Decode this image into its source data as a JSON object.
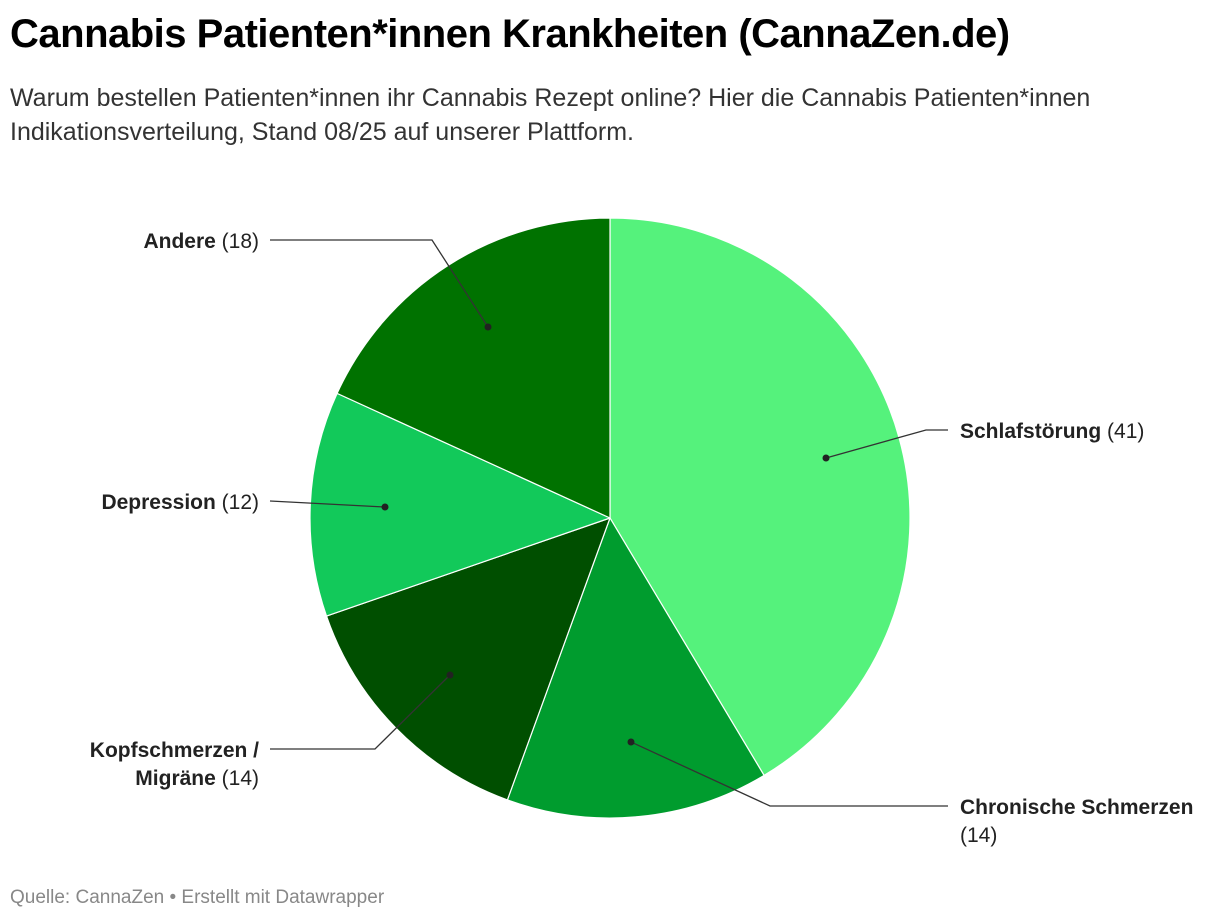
{
  "header": {
    "title": "Cannabis Patienten*innen Krankheiten (CannaZen.de)",
    "subtitle": "Warum bestellen Patienten*innen ihr Cannabis Rezept online? Hier die Cannabis Patienten*innen Indikationsverteilung, Stand 08/25 auf unserer Plattform."
  },
  "chart_data": {
    "type": "pie",
    "title": "Cannabis Patienten*innen Krankheiten (CannaZen.de)",
    "subtitle": "Warum bestellen Patienten*innen ihr Cannabis Rezept online? Hier die Cannabis Patienten*innen Indikationsverteilung, Stand 08/25 auf unserer Plattform.",
    "start": "12 o'clock, clockwise",
    "slices": [
      {
        "label": "Schlafstörung",
        "value": 41,
        "value_text": "(41)",
        "color": "#55f27c",
        "label_lines": [
          [
            "Schlafstörung",
            "(41)"
          ]
        ]
      },
      {
        "label": "Chronische Schmerzen",
        "value": 14,
        "value_text": "(14)",
        "color": "#009c2e",
        "label_lines": [
          [
            "Chronische Schmerzen",
            ""
          ],
          [
            "",
            "(14)"
          ]
        ]
      },
      {
        "label": "Kopfschmerzen / Migräne",
        "value": 14,
        "value_text": "(14)",
        "color": "#004f00",
        "label_lines": [
          [
            "Kopfschmerzen /",
            ""
          ],
          [
            "Migräne",
            "(14)"
          ]
        ]
      },
      {
        "label": "Depression",
        "value": 12,
        "value_text": "(12)",
        "color": "#12c95a",
        "label_lines": [
          [
            "Depression",
            "(12)"
          ]
        ]
      },
      {
        "label": "Andere",
        "value": 18,
        "value_text": "(18)",
        "color": "#007200",
        "label_lines": [
          [
            "Andere",
            "(18)"
          ]
        ]
      }
    ]
  },
  "footer": {
    "source": "Quelle: CannaZen • Erstellt mit Datawrapper"
  }
}
